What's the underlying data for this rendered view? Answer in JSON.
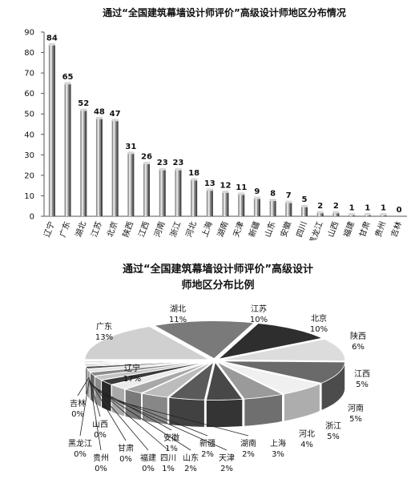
{
  "chart_data": [
    {
      "type": "bar",
      "title": "通过“全国建筑幕墙设计师评价”高级设计师地区分布情况",
      "xlabel": "",
      "ylabel": "",
      "ylim": [
        0,
        90
      ],
      "yticks": [
        "0",
        "10",
        "20",
        "30",
        "40",
        "50",
        "60",
        "70",
        "80",
        "90"
      ],
      "grid": false,
      "categories": [
        "辽宁",
        "广东",
        "湖北",
        "江苏",
        "北京",
        "陕西",
        "江西",
        "河南",
        "浙江",
        "河北",
        "上海",
        "湖南",
        "天津",
        "新疆",
        "山东",
        "安徽",
        "四川",
        "黑龙江",
        "山西",
        "福建",
        "甘肃",
        "贵州",
        "吉林"
      ],
      "values": [
        84,
        65,
        52,
        48,
        47,
        31,
        26,
        23,
        23,
        18,
        13,
        12,
        11,
        9,
        8,
        7,
        5,
        2,
        2,
        1,
        1,
        1,
        0
      ],
      "value_labels": [
        "84",
        "65",
        "52",
        "48",
        "47",
        "31",
        "26",
        "23",
        "23",
        "18",
        "13",
        "12",
        "11",
        "9",
        "8",
        "7",
        "5",
        "2",
        "2",
        "1",
        "1",
        "1",
        "0"
      ]
    },
    {
      "type": "pie",
      "title_lines": [
        "通过“全国建筑幕墙设计师评价”高级设计",
        "师地区分布比例"
      ],
      "style": "3d-exploded",
      "categories": [
        "辽宁",
        "广东",
        "湖北",
        "江苏",
        "北京",
        "陕西",
        "江西",
        "河南",
        "浙江",
        "河北",
        "上海",
        "湖南",
        "天津",
        "新疆",
        "山东",
        "安徽",
        "四川",
        "福建",
        "甘肃",
        "贵州",
        "黑龙江",
        "山西",
        "吉林"
      ],
      "values": [
        84,
        65,
        52,
        48,
        47,
        31,
        26,
        23,
        23,
        18,
        13,
        12,
        11,
        9,
        8,
        7,
        5,
        1,
        1,
        1,
        2,
        2,
        0
      ],
      "percent_labels": [
        "17%",
        "13%",
        "11%",
        "10%",
        "10%",
        "6%",
        "5%",
        "5%",
        "5%",
        "4%",
        "3%",
        "2%",
        "2%",
        "2%",
        "2%",
        "1%",
        "1%",
        "0%",
        "0%",
        "0%",
        "0%",
        "0%",
        "0%"
      ],
      "colors": [
        "#d0d0d0",
        "#7a7a7a",
        "#2e2e2e",
        "#dcdcdc",
        "#6a6a6a",
        "#f0f0f0",
        "#9a9a9a",
        "#484848",
        "#5a5a5a",
        "#bcbcbc",
        "#a8a8a8",
        "#ececec",
        "#3a3a3a",
        "#c4c4c4",
        "#8a8a8a",
        "#e4e4e4",
        "#505050",
        "#c8c8c8",
        "#707070",
        "#b0b0b0",
        "#d8d8d8",
        "#929292",
        "#f6f6f6"
      ]
    }
  ]
}
